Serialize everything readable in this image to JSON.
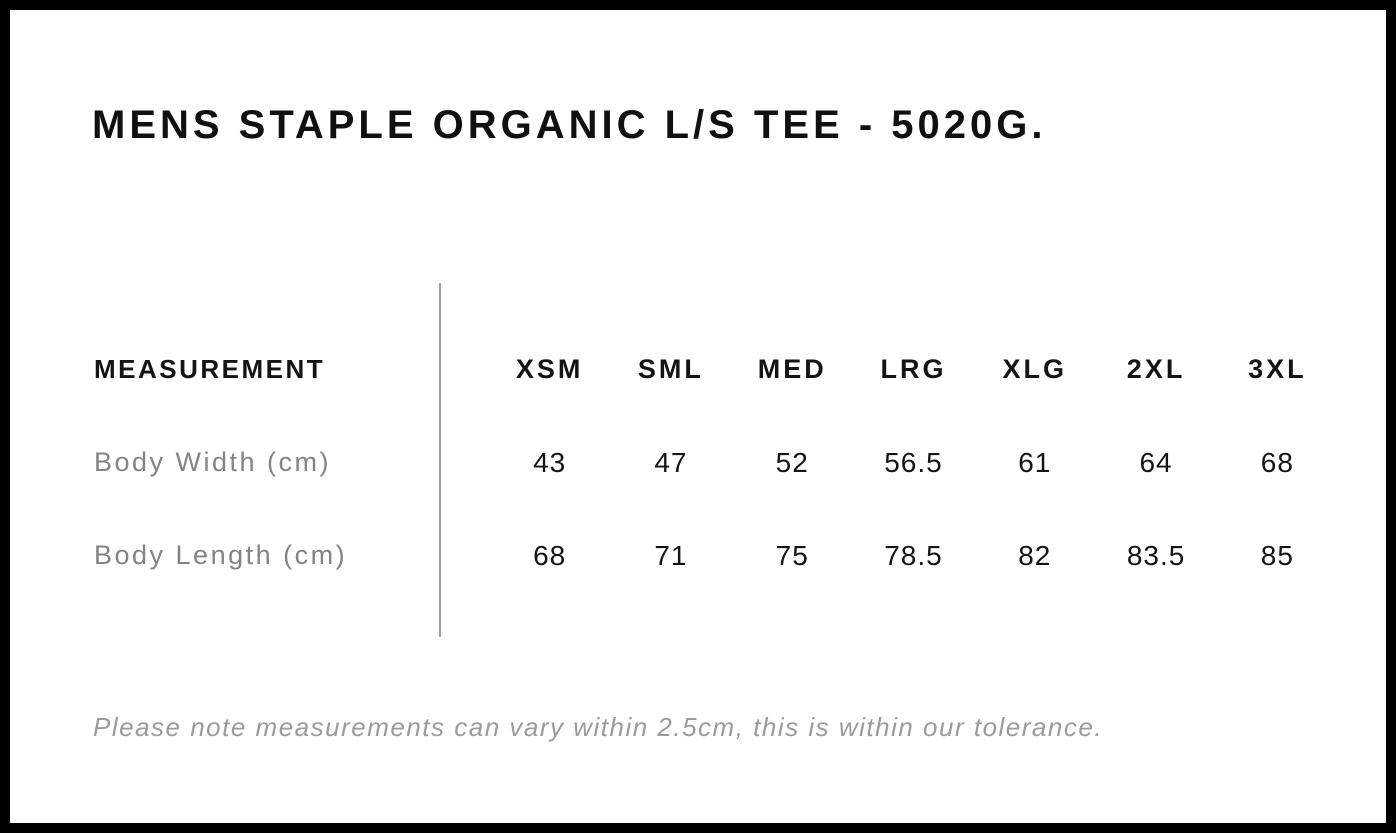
{
  "chart_data": {
    "type": "table",
    "title": "MENS STAPLE ORGANIC L/S TEE - 5020G.",
    "columns": [
      "MEASUREMENT",
      "XSM",
      "SML",
      "MED",
      "LRG",
      "XLG",
      "2XL",
      "3XL"
    ],
    "rows": [
      {
        "label": "Body Width (cm)",
        "values": [
          43,
          47,
          52,
          56.5,
          61,
          64,
          68
        ]
      },
      {
        "label": "Body Length (cm)",
        "values": [
          68,
          71,
          75,
          78.5,
          82,
          83.5,
          85
        ]
      }
    ]
  },
  "note": "Please note measurements can vary within 2.5cm, this is within our tolerance.",
  "colors": {
    "frame": "#000000",
    "background": "#ffffff",
    "text_primary": "#141414",
    "row_label_gray": "#848484",
    "note_gray": "#9b9b9b",
    "divider_gray": "#9c9c9c"
  }
}
